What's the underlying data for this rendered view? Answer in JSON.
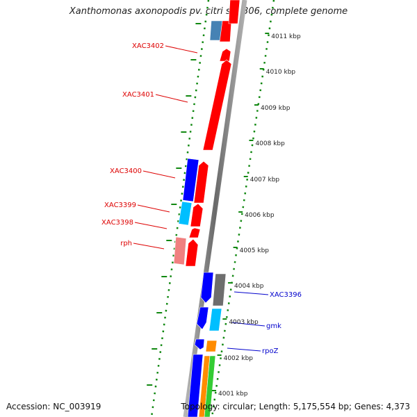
{
  "title": "Xanthomonas axonopodis pv. citri str. 306, complete genome",
  "accession": "Accession: NC_003919",
  "topology": "Topology: circular; Length: 5,175,554 bp; Genes: 4,373",
  "ticks": [
    "4011 kbp",
    "4010 kbp",
    "4009 kbp",
    "4008 kbp",
    "4007 kbp",
    "4006 kbp",
    "4005 kbp",
    "4004 kbp",
    "4003 kbp",
    "4002 kbp",
    "4001 kbp"
  ],
  "left_labels": [
    "XAC3402",
    "XAC3401",
    "XAC3400",
    "XAC3399",
    "XAC3398",
    "rph"
  ],
  "right_labels": [
    "XAC3396",
    "gmk",
    "rpoZ"
  ],
  "colors": {
    "red": "#ff0000",
    "light_red": "#f08080",
    "blue": "#0000ff",
    "steel_blue": "#4682b4",
    "cyan": "#00bfff",
    "gray": "#6e6e6e",
    "orange": "#ff8c00",
    "green": "#33cc33",
    "tick_green": "#118811",
    "left_label": "#dd0000",
    "right_label": "#0000cc"
  }
}
